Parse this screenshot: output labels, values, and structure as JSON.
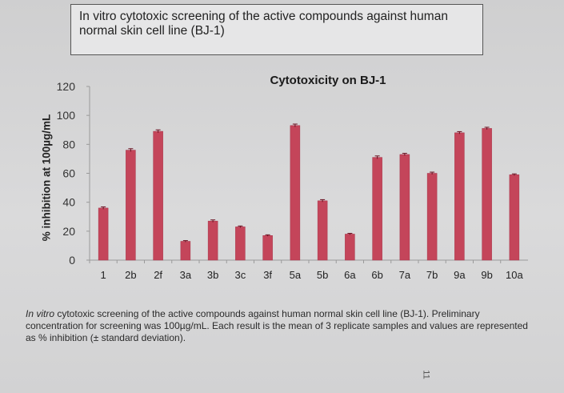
{
  "header": {
    "title": "In vitro cytotoxic screening of the active compounds against human normal skin cell line (BJ-1)"
  },
  "caption": {
    "italic_prefix": "In vitro",
    "text": " cytotoxic screening of the active compounds against human normal skin cell line (BJ-1). Preliminary concentration for screening was 100µg/mL. Each result is the mean of 3 replicate samples and values are represented as % inhibition (± standard deviation)."
  },
  "page_mark": "11",
  "chart_data": {
    "type": "bar",
    "title": "Cytotoxicity on BJ-1",
    "xlabel": "",
    "ylabel": "% inhibition at 100µg/mL",
    "ylim": [
      0,
      120
    ],
    "yticks": [
      0,
      20,
      40,
      60,
      80,
      100,
      120
    ],
    "grid": false,
    "legend": "none",
    "bar_color": "#c4455a",
    "categories": [
      "1",
      "2b",
      "2f",
      "3a",
      "3b",
      "3c",
      "3f",
      "5a",
      "5b",
      "6a",
      "6b",
      "7a",
      "7b",
      "9a",
      "9b",
      "10a"
    ],
    "values": [
      36,
      76,
      89,
      13,
      27,
      23,
      17,
      93,
      41,
      18,
      71,
      73,
      60,
      88,
      91,
      59
    ],
    "errors": [
      0.8,
      1.0,
      1.0,
      0.5,
      0.8,
      0.6,
      0.5,
      1.0,
      0.8,
      0.5,
      1.0,
      0.8,
      0.8,
      0.8,
      0.8,
      0.6
    ]
  }
}
